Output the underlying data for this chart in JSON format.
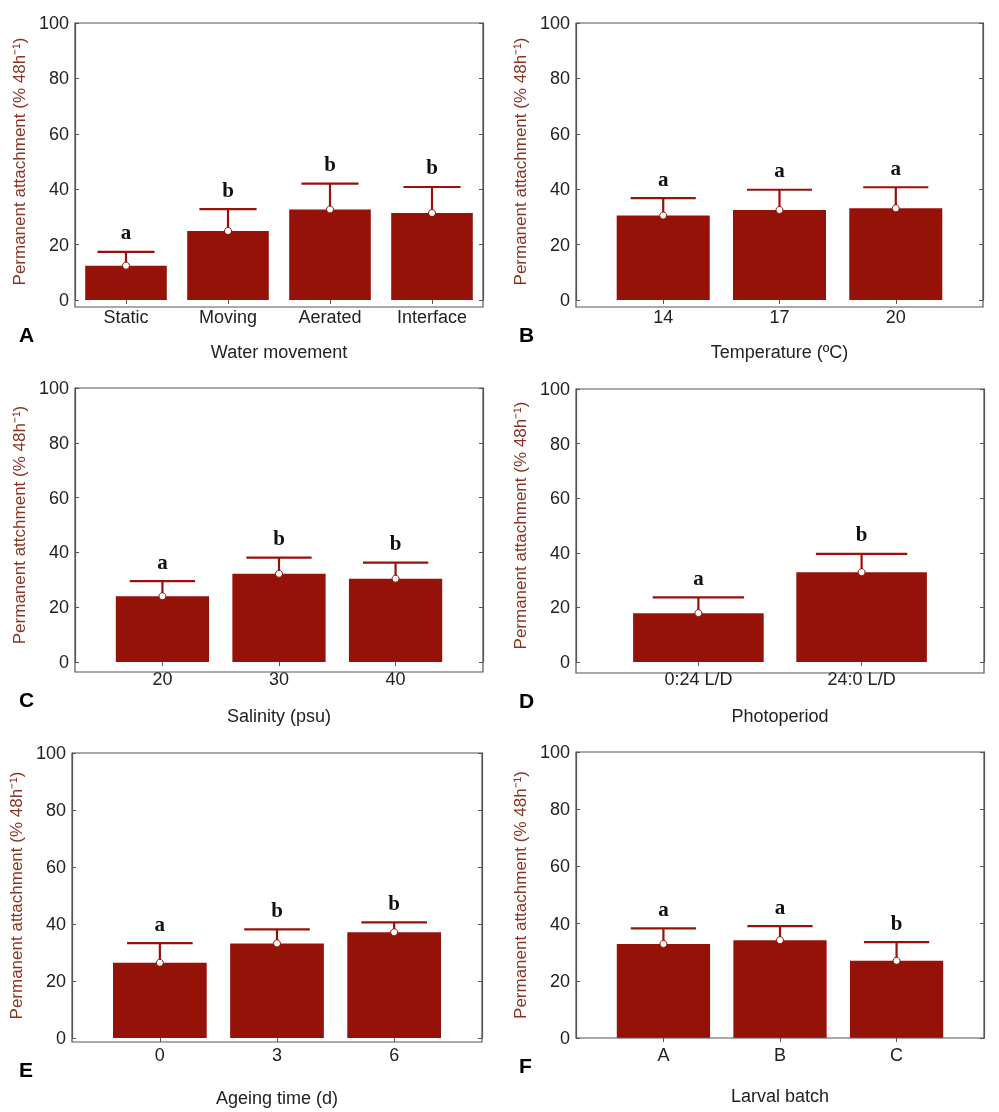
{
  "chart_data": [
    {
      "type": "bar",
      "title": "A",
      "categories": [
        "Static",
        "Moving",
        "Aerated",
        "Interface"
      ],
      "series": [
        {
          "type": "bar",
          "color": "#941208",
          "values": [
            12.4,
            24.9,
            32.7,
            31.4
          ],
          "errors": [
            [
              12.4,
              17.4
            ],
            [
              24.9,
              32.8
            ],
            [
              32.7,
              42.0
            ],
            [
              31.4,
              40.8
            ]
          ]
        },
        {
          "type": "scatter",
          "color": "#ffffff",
          "marker": "circle",
          "x": [
            "Static",
            "Moving",
            "Aerated",
            "Interface"
          ],
          "values": [
            12.4,
            24.9,
            32.7,
            31.4
          ]
        }
      ],
      "xlabel": "Water movement",
      "ylabel": "Permanent attachment (% 48h⁻¹)",
      "ylim": [
        0,
        100
      ],
      "yticks": [
        0,
        20,
        40,
        60,
        80,
        100
      ],
      "annotations": [
        "a",
        "b",
        "b",
        "b"
      ]
    },
    {
      "type": "bar",
      "title": "B",
      "categories": [
        "14",
        "17",
        "20"
      ],
      "series": [
        {
          "type": "bar",
          "color": "#941208",
          "values": [
            30.5,
            32.5,
            33.1
          ],
          "errors": [
            [
              30.5,
              36.8
            ],
            [
              32.5,
              39.8
            ],
            [
              33.1,
              40.7
            ]
          ]
        },
        {
          "type": "scatter",
          "color": "#ffffff",
          "marker": "circle",
          "x": [
            "14",
            "17",
            "20"
          ],
          "values": [
            30.5,
            32.5,
            33.1
          ]
        }
      ],
      "xlabel": "Temperature (ºC)",
      "ylabel": "Permanent attachment (% 48h⁻¹)",
      "ylim": [
        0,
        100
      ],
      "yticks": [
        0,
        20,
        40,
        60,
        80,
        100
      ],
      "annotations": [
        "a",
        "a",
        "a"
      ]
    },
    {
      "type": "bar",
      "title": "C",
      "categories": [
        "20",
        "30",
        "40"
      ],
      "series": [
        {
          "type": "bar",
          "color": "#941208",
          "values": [
            24.0,
            32.2,
            30.4
          ],
          "errors": [
            [
              24.0,
              29.5
            ],
            [
              32.2,
              38.1
            ],
            [
              30.4,
              36.3
            ]
          ]
        },
        {
          "type": "scatter",
          "color": "#ffffff",
          "marker": "circle",
          "x": [
            "20",
            "30",
            "40"
          ],
          "values": [
            24.0,
            32.2,
            30.4
          ]
        }
      ],
      "xlabel": "Salinity (psu)",
      "ylabel": "Permanent attchment (% 48h⁻¹)",
      "ylim": [
        0,
        100
      ],
      "yticks": [
        0,
        20,
        40,
        60,
        80,
        100
      ],
      "annotations": [
        "a",
        "b",
        "b"
      ]
    },
    {
      "type": "bar",
      "title": "D",
      "categories": [
        "0:24 L/D",
        "24:0 L/D"
      ],
      "series": [
        {
          "type": "bar",
          "color": "#941208",
          "values": [
            17.9,
            32.9
          ],
          "errors": [
            [
              17.9,
              23.7
            ],
            [
              32.9,
              39.6
            ]
          ]
        },
        {
          "type": "scatter",
          "color": "#ffffff",
          "marker": "circle",
          "x": [
            "0:24 L/D",
            "24:0 L/D"
          ],
          "values": [
            17.9,
            32.9
          ]
        }
      ],
      "xlabel": "Photoperiod",
      "ylabel": "Permanent attachment (% 48h⁻¹)",
      "ylim": [
        0,
        100
      ],
      "yticks": [
        0,
        20,
        40,
        60,
        80,
        100
      ],
      "annotations": [
        "a",
        "b"
      ]
    },
    {
      "type": "bar",
      "title": "E",
      "categories": [
        "0",
        "3",
        "6"
      ],
      "series": [
        {
          "type": "bar",
          "color": "#941208",
          "values": [
            26.4,
            33.2,
            37.1
          ],
          "errors": [
            [
              26.4,
              33.3
            ],
            [
              33.2,
              38.1
            ],
            [
              37.1,
              40.6
            ]
          ]
        },
        {
          "type": "scatter",
          "color": "#ffffff",
          "marker": "circle",
          "x": [
            "0",
            "3",
            "6"
          ],
          "values": [
            26.4,
            33.2,
            37.1
          ]
        }
      ],
      "xlabel": "Ageing time (d)",
      "ylabel": "Permanent attachment (% 48h⁻¹)",
      "ylim": [
        0,
        100
      ],
      "yticks": [
        0,
        20,
        40,
        60,
        80,
        100
      ],
      "annotations": [
        "a",
        "b",
        "b"
      ]
    },
    {
      "type": "bar",
      "title": "F",
      "categories": [
        "A",
        "B",
        "C"
      ],
      "series": [
        {
          "type": "bar",
          "color": "#941208",
          "values": [
            32.9,
            34.2,
            27.0
          ],
          "errors": [
            [
              32.9,
              38.3
            ],
            [
              34.2,
              39.1
            ],
            [
              27.0,
              33.5
            ]
          ]
        },
        {
          "type": "scatter",
          "color": "#ffffff",
          "marker": "circle",
          "x": [
            "A",
            "B",
            "C"
          ],
          "values": [
            32.9,
            34.2,
            27.0
          ]
        }
      ],
      "xlabel": "Larval batch",
      "ylabel": "Permanent attachment (% 48h⁻¹)",
      "ylim": [
        0,
        100
      ],
      "yticks": [
        0,
        20,
        40,
        60,
        80,
        100
      ],
      "annotations": [
        "a",
        "a",
        "b"
      ]
    }
  ]
}
